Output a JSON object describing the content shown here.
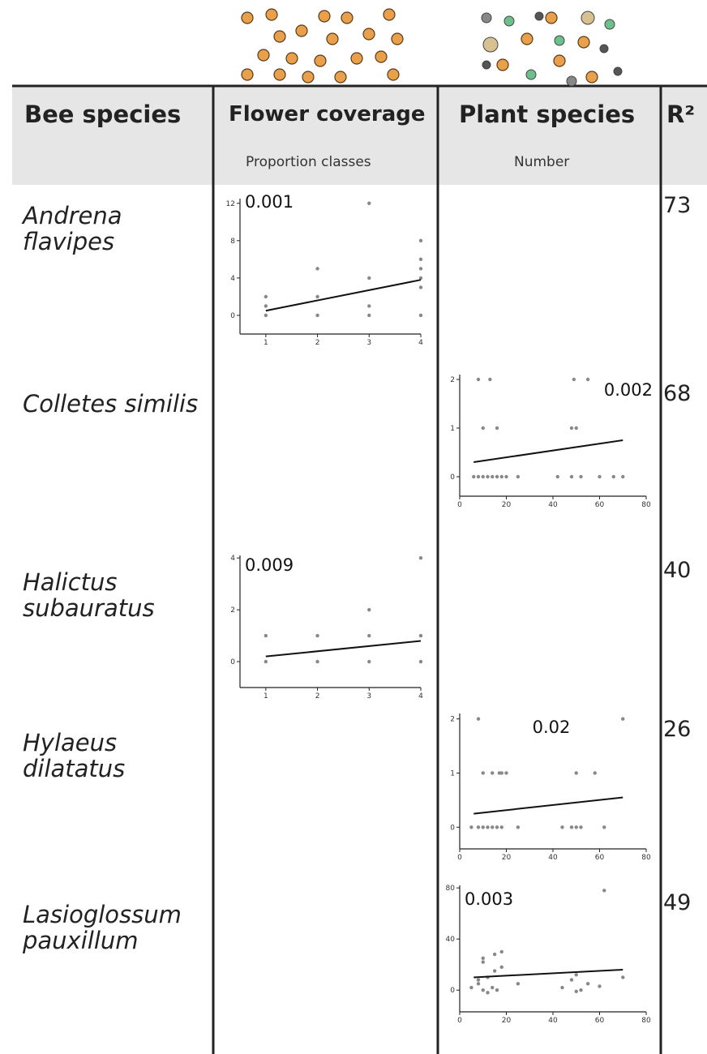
{
  "table": {
    "header": {
      "species": "Bee species",
      "flower": "Flower coverage",
      "flower_unit": "Proportion classes",
      "plant": "Plant species",
      "plant_unit": "Number",
      "r2": "R²"
    },
    "rows": [
      {
        "species": "Andrena flavipes",
        "r2": "73"
      },
      {
        "species": "Colletes similis",
        "r2": "68"
      },
      {
        "species": "Halictus subauratus",
        "r2": "40"
      },
      {
        "species": "Hylaeus dilatatus",
        "r2": "26"
      },
      {
        "species": "Lasioglossum pauxillum",
        "r2": "49"
      }
    ]
  },
  "chart_data": [
    {
      "type": "scatter",
      "annotation": "0.001",
      "color": "#888888",
      "x": [
        1,
        1,
        1,
        2,
        2,
        2,
        3,
        3,
        3,
        3,
        4,
        4,
        4,
        4,
        4,
        4
      ],
      "values": [
        0,
        1,
        2,
        0,
        2,
        5,
        0,
        1,
        4,
        12,
        0,
        3,
        4,
        5,
        6,
        8
      ],
      "trend_x": [
        1,
        4
      ],
      "trend_y": [
        0.5,
        3.8
      ],
      "xlim": [
        0.5,
        4
      ],
      "ylim": [
        -2,
        12.5
      ],
      "xticks": [
        1,
        2,
        3,
        4
      ],
      "yticks": [
        0,
        4,
        8,
        12
      ]
    },
    {
      "type": "scatter",
      "annotation": "0.002",
      "color": "#888888",
      "x": [
        8,
        13,
        49,
        55,
        10,
        16,
        48,
        50,
        6,
        8,
        10,
        12,
        14,
        16,
        18,
        20,
        25,
        42,
        48,
        52,
        60,
        66,
        70
      ],
      "values": [
        2,
        2,
        2,
        2,
        1,
        1,
        1,
        1,
        0,
        0,
        0,
        0,
        0,
        0,
        0,
        0,
        0,
        0,
        0,
        0,
        0,
        0,
        0
      ],
      "trend_x": [
        6,
        70
      ],
      "trend_y": [
        0.3,
        0.75
      ],
      "xlim": [
        0,
        80
      ],
      "ylim": [
        -0.4,
        2.1
      ],
      "xticks": [
        0,
        20,
        40,
        60,
        80
      ],
      "yticks": [
        0,
        1,
        2
      ]
    },
    {
      "type": "scatter",
      "annotation": "0.009",
      "color": "#888888",
      "x": [
        4,
        3,
        1,
        2,
        3,
        4,
        1,
        2,
        3,
        4
      ],
      "values": [
        4,
        2,
        1,
        1,
        1,
        1,
        0,
        0,
        0,
        0
      ],
      "trend_x": [
        1,
        4
      ],
      "trend_y": [
        0.2,
        0.8
      ],
      "xlim": [
        0.5,
        4
      ],
      "ylim": [
        -1,
        4.1
      ],
      "xticks": [
        1,
        2,
        3,
        4
      ],
      "yticks": [
        0,
        2,
        4
      ]
    },
    {
      "type": "scatter",
      "annotation": "0.02",
      "color": "#888888",
      "x": [
        8,
        70,
        10,
        14,
        17,
        18,
        20,
        50,
        58,
        5,
        8,
        10,
        12,
        14,
        16,
        18,
        25,
        44,
        48,
        50,
        52,
        62
      ],
      "values": [
        2,
        2,
        1,
        1,
        1,
        1,
        1,
        1,
        1,
        0,
        0,
        0,
        0,
        0,
        0,
        0,
        0,
        0,
        0,
        0,
        0,
        0
      ],
      "trend_x": [
        6,
        70
      ],
      "trend_y": [
        0.25,
        0.55
      ],
      "xlim": [
        0,
        80
      ],
      "ylim": [
        -0.4,
        2.1
      ],
      "xticks": [
        0,
        20,
        40,
        60,
        80
      ],
      "yticks": [
        0,
        1,
        2
      ]
    },
    {
      "type": "scatter",
      "annotation": "0.003",
      "color": "#888888",
      "x": [
        62,
        10,
        10,
        15,
        18,
        15,
        18,
        12,
        8,
        5,
        10,
        12,
        14,
        16,
        25,
        44,
        48,
        50,
        52,
        55,
        60,
        70,
        50,
        8
      ],
      "values": [
        78,
        22,
        25,
        28,
        30,
        15,
        18,
        10,
        5,
        2,
        0,
        -2,
        2,
        0,
        5,
        2,
        8,
        12,
        0,
        5,
        3,
        10,
        -1,
        8
      ],
      "trend_x": [
        6,
        70
      ],
      "trend_y": [
        10,
        16
      ],
      "xlim": [
        0,
        80
      ],
      "ylim": [
        -17,
        82
      ],
      "xticks": [
        0,
        20,
        40,
        60,
        80
      ],
      "yticks": [
        0,
        40,
        80
      ]
    }
  ]
}
